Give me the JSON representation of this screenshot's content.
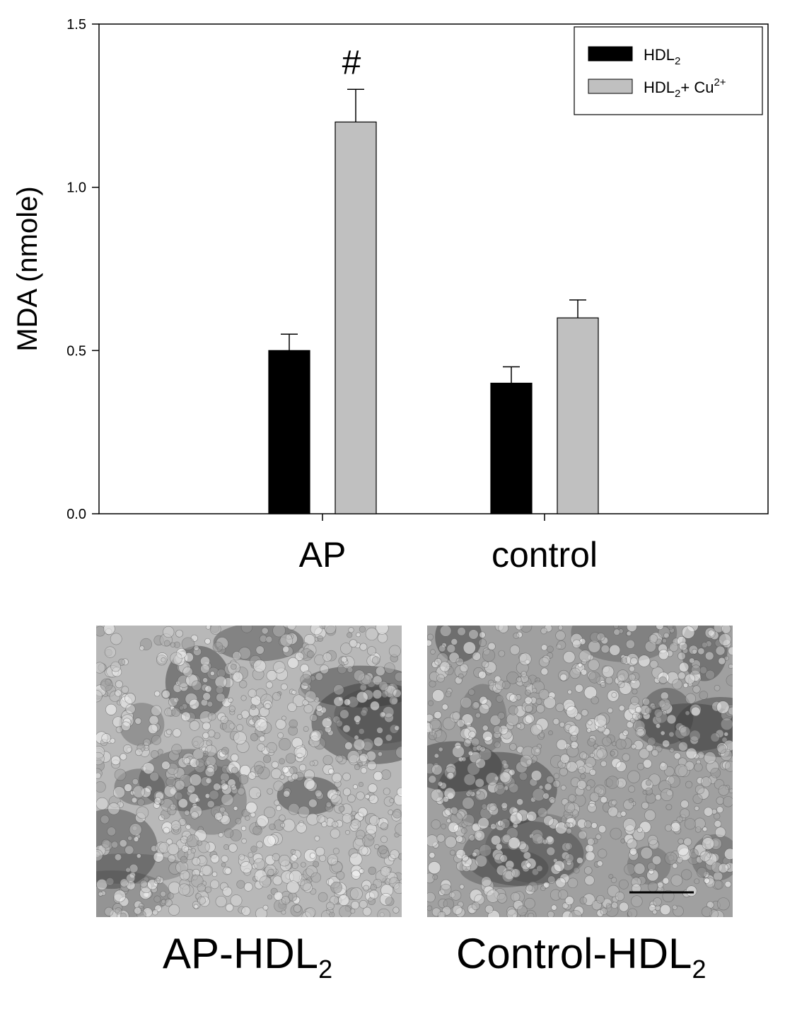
{
  "chart_data": {
    "type": "bar",
    "categories": [
      "AP",
      "control"
    ],
    "series": [
      {
        "name": "HDL2",
        "color": "#000000",
        "values": [
          0.5,
          0.4
        ],
        "errors": [
          0.05,
          0.05
        ]
      },
      {
        "name": "HDL2+ Cu2+",
        "color": "#c0c0c0",
        "values": [
          1.2,
          0.6
        ],
        "errors": [
          0.1,
          0.055
        ]
      }
    ],
    "ylabel": "MDA (nmole)",
    "xlabel": "",
    "ylim": [
      0,
      1.5
    ],
    "yticks": [
      "0.0",
      "0.5",
      "1.0",
      "1.5"
    ],
    "yticks_values": [
      0,
      0.5,
      1.0,
      1.5
    ],
    "annotations": [
      {
        "text": "#",
        "category": "AP",
        "series": 1
      }
    ],
    "legend": {
      "placement": "top-right",
      "entries": [
        {
          "base": "HDL",
          "sub": "2",
          "rest": "",
          "sup": ""
        },
        {
          "base": "HDL",
          "sub": "2",
          "rest": "+ Cu",
          "sup": "2+"
        }
      ]
    },
    "grid": false
  },
  "panels": [
    {
      "base": "AP-HDL",
      "sub": "2",
      "tone": "#b8b8b8",
      "has_scale_bar": false
    },
    {
      "base": "Control-HDL",
      "sub": "2",
      "tone": "#a0a0a0",
      "has_scale_bar": true
    }
  ]
}
